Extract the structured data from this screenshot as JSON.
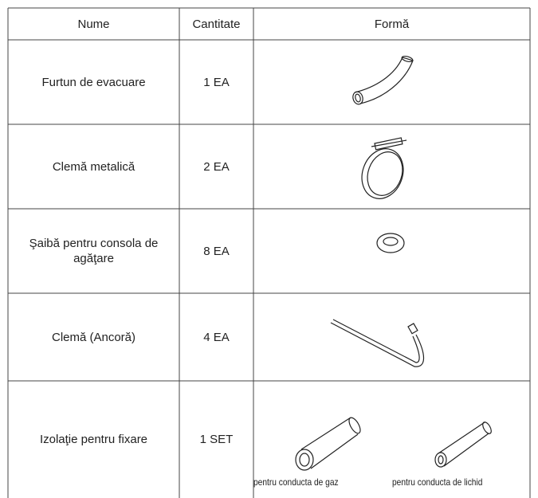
{
  "table": {
    "header": [
      "Nume",
      "Cantitate",
      "Formă"
    ],
    "rows": [
      {
        "name": "Furtun de evacuare",
        "quantity": "1 EA"
      },
      {
        "name": "Clemă metalică",
        "quantity": "2 EA"
      },
      {
        "name": "Şaibă pentru consola de agăţare",
        "quantity": "8 EA"
      },
      {
        "name": "Clemă (Ancoră)",
        "quantity": "4 EA"
      },
      {
        "name": "Izolaţie pentru fixare",
        "quantity": "1 SET",
        "captions": [
          "pentru conducta de gaz",
          "pentru conducta de lichid"
        ]
      }
    ]
  }
}
